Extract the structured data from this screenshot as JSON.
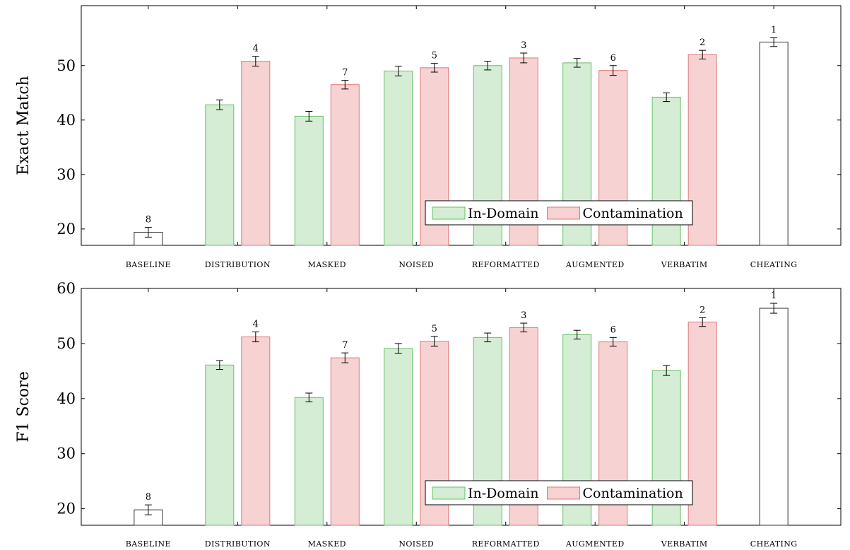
{
  "chart_data": [
    {
      "type": "bar",
      "ylabel": "Exact Match",
      "ylim": [
        17,
        61
      ],
      "yticks": [
        20,
        30,
        40,
        50
      ],
      "categories": [
        "BASELINE",
        "DISTRIBUTION",
        "MASKED",
        "NOISED",
        "REFORMATTED",
        "AUGMENTED",
        "VERBATIM",
        "CHEATING"
      ],
      "legend": {
        "placement": "bottom-center",
        "entries": [
          "In-Domain",
          "Contamination"
        ]
      },
      "series": [
        {
          "name": "In-Domain",
          "color": "#d4edd4",
          "edge": "#6abf6a",
          "values": [
            null,
            42.8,
            40.7,
            49.0,
            50.0,
            50.5,
            44.2,
            null
          ],
          "errors": [
            null,
            0.9,
            0.9,
            0.9,
            0.8,
            0.8,
            0.8,
            null
          ]
        },
        {
          "name": "Contamination",
          "color": "#f6d2d2",
          "edge": "#e07878",
          "values": [
            null,
            50.8,
            46.5,
            49.6,
            51.4,
            49.1,
            52.0,
            null
          ],
          "errors": [
            null,
            0.9,
            0.8,
            0.8,
            0.9,
            0.9,
            0.8,
            null
          ]
        },
        {
          "name": "",
          "color": "#ffffff",
          "edge": "#333333",
          "values": [
            19.4,
            null,
            null,
            null,
            null,
            null,
            null,
            54.3
          ],
          "errors": [
            0.9,
            null,
            null,
            null,
            null,
            null,
            null,
            0.8
          ]
        }
      ],
      "ranks": [
        {
          "category": "BASELINE",
          "series": 2,
          "label": "8"
        },
        {
          "category": "DISTRIBUTION",
          "series": 1,
          "label": "4"
        },
        {
          "category": "MASKED",
          "series": 1,
          "label": "7"
        },
        {
          "category": "NOISED",
          "series": 1,
          "label": "5"
        },
        {
          "category": "REFORMATTED",
          "series": 1,
          "label": "3"
        },
        {
          "category": "AUGMENTED",
          "series": 1,
          "label": "6"
        },
        {
          "category": "VERBATIM",
          "series": 1,
          "label": "2"
        },
        {
          "category": "CHEATING",
          "series": 2,
          "label": "1"
        }
      ]
    },
    {
      "type": "bar",
      "ylabel": "F1 Score",
      "ylim": [
        17,
        60
      ],
      "yticks": [
        20,
        30,
        40,
        50,
        60
      ],
      "categories": [
        "BASELINE",
        "DISTRIBUTION",
        "MASKED",
        "NOISED",
        "REFORMATTED",
        "AUGMENTED",
        "VERBATIM",
        "CHEATING"
      ],
      "legend": {
        "placement": "bottom-center",
        "entries": [
          "In-Domain",
          "Contamination"
        ]
      },
      "series": [
        {
          "name": "In-Domain",
          "color": "#d4edd4",
          "edge": "#6abf6a",
          "values": [
            null,
            46.1,
            40.2,
            49.1,
            51.1,
            51.6,
            45.1,
            null
          ],
          "errors": [
            null,
            0.8,
            0.8,
            0.9,
            0.8,
            0.8,
            0.9,
            null
          ]
        },
        {
          "name": "Contamination",
          "color": "#f6d2d2",
          "edge": "#e07878",
          "values": [
            null,
            51.2,
            47.4,
            50.4,
            52.9,
            50.3,
            53.9,
            null
          ],
          "errors": [
            null,
            0.9,
            0.9,
            0.9,
            0.8,
            0.8,
            0.8,
            null
          ]
        },
        {
          "name": "",
          "color": "#ffffff",
          "edge": "#333333",
          "values": [
            19.8,
            null,
            null,
            null,
            null,
            null,
            null,
            56.4
          ],
          "errors": [
            0.9,
            null,
            null,
            null,
            null,
            null,
            null,
            0.9
          ]
        }
      ],
      "ranks": [
        {
          "category": "BASELINE",
          "series": 2,
          "label": "8"
        },
        {
          "category": "DISTRIBUTION",
          "series": 1,
          "label": "4"
        },
        {
          "category": "MASKED",
          "series": 1,
          "label": "7"
        },
        {
          "category": "NOISED",
          "series": 1,
          "label": "5"
        },
        {
          "category": "REFORMATTED",
          "series": 1,
          "label": "3"
        },
        {
          "category": "AUGMENTED",
          "series": 1,
          "label": "6"
        },
        {
          "category": "VERBATIM",
          "series": 1,
          "label": "2"
        },
        {
          "category": "CHEATING",
          "series": 2,
          "label": "1"
        }
      ]
    }
  ]
}
